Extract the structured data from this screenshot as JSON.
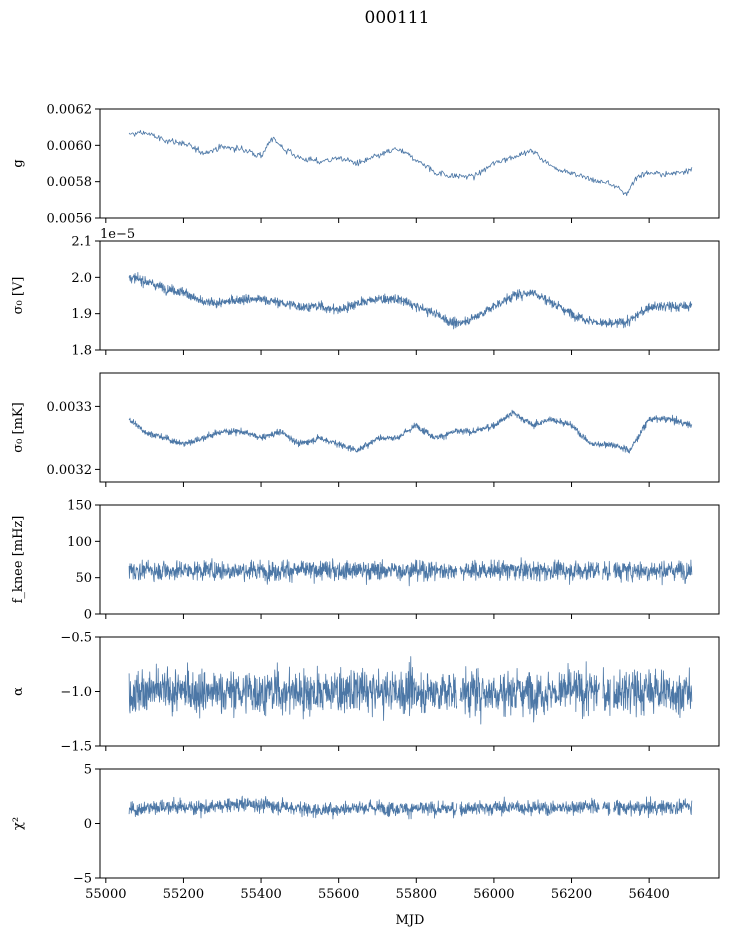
{
  "title": "000111",
  "chart_data": [
    {
      "type": "line",
      "ylabel": "g",
      "ylim": [
        0.0056,
        0.0062
      ],
      "yticks": [
        "0.0056",
        "0.0058",
        "0.0060",
        "0.0062"
      ],
      "x": [
        55060,
        55100,
        55150,
        55200,
        55250,
        55300,
        55350,
        55400,
        55430,
        55460,
        55500,
        55550,
        55600,
        55650,
        55700,
        55750,
        55800,
        55850,
        55900,
        55950,
        56000,
        56050,
        56100,
        56150,
        56200,
        56250,
        56300,
        56340,
        56370,
        56400,
        56450,
        56510
      ],
      "values": [
        0.00606,
        0.00607,
        0.00603,
        0.00601,
        0.00596,
        0.00599,
        0.00598,
        0.00594,
        0.00604,
        0.00598,
        0.00593,
        0.00591,
        0.00593,
        0.0059,
        0.00594,
        0.00598,
        0.00592,
        0.00585,
        0.00583,
        0.00583,
        0.0059,
        0.00594,
        0.00597,
        0.00588,
        0.00585,
        0.00581,
        0.00579,
        0.00573,
        0.00583,
        0.00585,
        0.00584,
        0.00587
      ],
      "noise": 1.2e-05,
      "density": 700
    },
    {
      "type": "line",
      "ylabel": "σ₀ [V]",
      "offset_text": "1e−5",
      "ylim": [
        1.8,
        2.1
      ],
      "yticks": [
        "1.8",
        "1.9",
        "2.0",
        "2.1"
      ],
      "x": [
        55060,
        55100,
        55150,
        55200,
        55250,
        55300,
        55350,
        55400,
        55450,
        55500,
        55550,
        55600,
        55650,
        55700,
        55750,
        55800,
        55850,
        55900,
        55950,
        56000,
        56050,
        56100,
        56150,
        56200,
        56250,
        56300,
        56350,
        56400,
        56450,
        56510
      ],
      "values": [
        2.0,
        1.99,
        1.97,
        1.96,
        1.93,
        1.93,
        1.94,
        1.94,
        1.93,
        1.92,
        1.92,
        1.91,
        1.93,
        1.94,
        1.94,
        1.92,
        1.9,
        1.87,
        1.89,
        1.92,
        1.95,
        1.96,
        1.93,
        1.9,
        1.88,
        1.87,
        1.88,
        1.92,
        1.92,
        1.92
      ],
      "noise": 0.009,
      "density": 1800
    },
    {
      "type": "line",
      "ylabel": "σ₀ [mK]",
      "ylim": [
        0.00318,
        0.003353
      ],
      "yticks": [
        "0.0032",
        "0.0033"
      ],
      "ytick_values": [
        0.0032,
        0.0033
      ],
      "x": [
        55060,
        55100,
        55150,
        55200,
        55250,
        55300,
        55350,
        55400,
        55450,
        55500,
        55550,
        55600,
        55650,
        55700,
        55750,
        55800,
        55850,
        55900,
        55950,
        56000,
        56050,
        56100,
        56150,
        56200,
        56250,
        56300,
        56350,
        56400,
        56450,
        56510
      ],
      "values": [
        0.00328,
        0.00326,
        0.00325,
        0.00324,
        0.00325,
        0.00326,
        0.00326,
        0.00325,
        0.00326,
        0.00324,
        0.00325,
        0.00324,
        0.00323,
        0.00325,
        0.00325,
        0.00327,
        0.00325,
        0.00326,
        0.00326,
        0.00327,
        0.00329,
        0.00327,
        0.00328,
        0.00327,
        0.00324,
        0.00324,
        0.00323,
        0.00328,
        0.00328,
        0.00327
      ],
      "noise": 3.5e-06,
      "density": 1800
    },
    {
      "type": "line",
      "ylabel": "f_knee [mHz]",
      "ylim": [
        0,
        150
      ],
      "yticks": [
        "0",
        "50",
        "100",
        "150"
      ],
      "x": [
        55060,
        56510
      ],
      "values": [
        60,
        60
      ],
      "noise": 9,
      "density": 1800,
      "gaps": [
        [
          55905,
          55912
        ],
        [
          56272,
          56280
        ],
        [
          56300,
          56308
        ]
      ]
    },
    {
      "type": "line",
      "ylabel": "α",
      "ylim": [
        -1.5,
        -0.5
      ],
      "yticks": [
        "−1.5",
        "−1.0",
        "−0.5"
      ],
      "ytick_values": [
        -1.5,
        -1.0,
        -0.5
      ],
      "x": [
        55060,
        56510
      ],
      "values": [
        -1.0,
        -1.0
      ],
      "noise": 0.14,
      "density": 1800,
      "gaps": [
        [
          55905,
          55912
        ],
        [
          56272,
          56280
        ],
        [
          56300,
          56308
        ]
      ]
    },
    {
      "type": "line",
      "ylabel": "χ²",
      "ylim": [
        -5,
        5
      ],
      "yticks": [
        "−5",
        "0",
        "5"
      ],
      "ytick_values": [
        -5,
        0,
        5
      ],
      "x": [
        55060,
        55150,
        55250,
        55350,
        55450,
        55550,
        55650,
        55750,
        55850,
        55950,
        56050,
        56150,
        56250,
        56350,
        56450,
        56510
      ],
      "values": [
        1.2,
        1.6,
        1.4,
        1.8,
        1.6,
        1.2,
        1.5,
        1.4,
        1.3,
        1.4,
        1.5,
        1.4,
        1.6,
        1.4,
        1.5,
        1.6
      ],
      "noise": 0.45,
      "density": 1800,
      "gaps": [
        [
          55905,
          55912
        ],
        [
          56272,
          56280
        ],
        [
          56300,
          56308
        ]
      ]
    }
  ],
  "xaxis": {
    "xlabel": "MJD",
    "xlim": [
      54985,
      56580
    ],
    "xticks": [
      "55000",
      "55200",
      "55400",
      "55600",
      "55800",
      "56000",
      "56200",
      "56400"
    ],
    "xtick_values": [
      55000,
      55200,
      55400,
      55600,
      55800,
      56000,
      56200,
      56400
    ]
  },
  "colors": {
    "series": "#4c77a6"
  }
}
